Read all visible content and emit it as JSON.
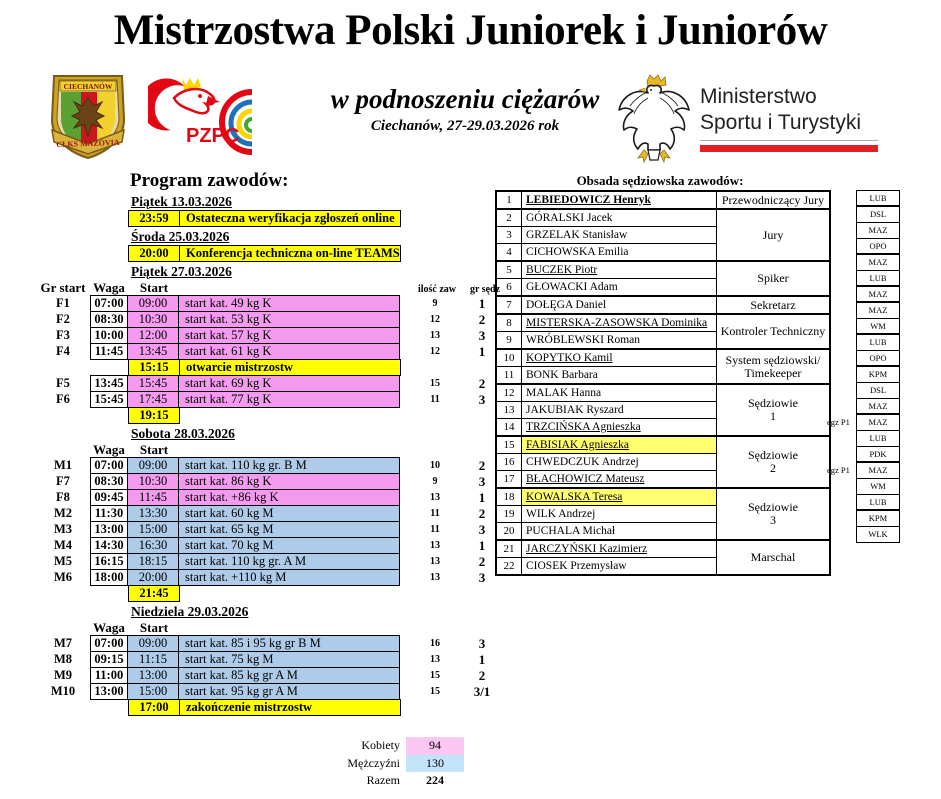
{
  "header": {
    "title": "Mistrzostwa Polski Juniorek i Juniorów",
    "subtitle": "w podnoszeniu ciężarów",
    "location": "Ciechanów, 27-29.03.2026 rok",
    "ministry": {
      "line1": "Ministerstwo",
      "line2": "Sportu i Turystyki"
    }
  },
  "logos": {
    "club_top": "CIECHANÓW",
    "club_bottom": "CŁKS MAZOVIA",
    "pzpc_label": "PZPC"
  },
  "colors": {
    "pink": "#F49BEF",
    "blue": "#AECBE9",
    "yellow": "#FFFF00",
    "hl_yellow": "#FFFF70",
    "sum_pink": "#FAC7F2",
    "sum_blue": "#C2E3F8",
    "red": "#E31E24"
  },
  "schedule": {
    "heading": "Program zawodów:",
    "col_headers": {
      "gr": "Gr start",
      "waga": "Waga",
      "start": "Start",
      "ilosc": "ilość zaw",
      "sedz": "gr sędz"
    },
    "pre_events": [
      {
        "date": "Piątek 13.03.2026",
        "time": "23:59",
        "desc": "Ostateczna weryfikacja zgłoszeń online"
      },
      {
        "date": "Środa 25.03.2026",
        "time": "20:00",
        "desc": "Konferencja techniczna on-line TEAMS"
      }
    ],
    "days": [
      {
        "date": "Piątek 27.03.2026",
        "show_gr": true,
        "show_counts": true,
        "rows": [
          {
            "gr": "F1",
            "waga": "07:00",
            "start": "09:00",
            "desc": "start kat. 49 kg K",
            "ilosc": "9",
            "sedz": "1",
            "color": "pink"
          },
          {
            "gr": "F2",
            "waga": "08:30",
            "start": "10:30",
            "desc": "start kat. 53 kg K",
            "ilosc": "12",
            "sedz": "2",
            "color": "pink"
          },
          {
            "gr": "F3",
            "waga": "10:00",
            "start": "12:00",
            "desc": "start kat. 57 kg K",
            "ilosc": "13",
            "sedz": "3",
            "color": "pink"
          },
          {
            "gr": "F4",
            "waga": "11:45",
            "start": "13:45",
            "desc": "start kat. 61 kg K",
            "ilosc": "12",
            "sedz": "1",
            "color": "pink"
          },
          {
            "special": true,
            "time": "15:15",
            "desc": "otwarcie mistrzostw"
          },
          {
            "gr": "F5",
            "waga": "13:45",
            "start": "15:45",
            "desc": "start kat. 69 kg K",
            "ilosc": "15",
            "sedz": "2",
            "color": "pink"
          },
          {
            "gr": "F6",
            "waga": "15:45",
            "start": "17:45",
            "desc": "start kat. 77 kg K",
            "ilosc": "11",
            "sedz": "3",
            "color": "pink"
          },
          {
            "special": true,
            "time": "19:15",
            "desc": ""
          }
        ]
      },
      {
        "date": "Sobota 28.03.2026",
        "show_gr": false,
        "show_counts": false,
        "rows": [
          {
            "gr": "M1",
            "waga": "07:00",
            "start": "09:00",
            "desc": "start kat. 110 kg gr. B M",
            "ilosc": "10",
            "sedz": "2",
            "color": "blue"
          },
          {
            "gr": "F7",
            "waga": "08:30",
            "start": "10:30",
            "desc": "start kat. 86 kg K",
            "ilosc": "9",
            "sedz": "3",
            "color": "pink"
          },
          {
            "gr": "F8",
            "waga": "09:45",
            "start": "11:45",
            "desc": "start kat. +86 kg K",
            "ilosc": "13",
            "sedz": "1",
            "color": "pink"
          },
          {
            "gr": "M2",
            "waga": "11:30",
            "start": "13:30",
            "desc": "start kat. 60 kg M",
            "ilosc": "11",
            "sedz": "2",
            "color": "blue"
          },
          {
            "gr": "M3",
            "waga": "13:00",
            "start": "15:00",
            "desc": "start kat. 65 kg M",
            "ilosc": "11",
            "sedz": "3",
            "color": "blue"
          },
          {
            "gr": "M4",
            "waga": "14:30",
            "start": "16:30",
            "desc": "start kat. 70 kg M",
            "ilosc": "13",
            "sedz": "1",
            "color": "blue"
          },
          {
            "gr": "M5",
            "waga": "16:15",
            "start": "18:15",
            "desc": "start kat. 110 kg gr. A M",
            "ilosc": "13",
            "sedz": "2",
            "color": "blue"
          },
          {
            "gr": "M6",
            "waga": "18:00",
            "start": "20:00",
            "desc": "start kat. +110 kg M",
            "ilosc": "13",
            "sedz": "3",
            "color": "blue"
          },
          {
            "special": true,
            "time": "21:45",
            "desc": ""
          }
        ]
      },
      {
        "date": "Niedziela 29.03.2026",
        "show_gr": false,
        "show_counts": false,
        "rows": [
          {
            "gr": "M7",
            "waga": "07:00",
            "start": "09:00",
            "desc": "start kat. 85 i 95 kg gr B M",
            "ilosc": "16",
            "sedz": "3",
            "color": "blue"
          },
          {
            "gr": "M8",
            "waga": "09:15",
            "start": "11:15",
            "desc": "start kat. 75 kg M",
            "ilosc": "13",
            "sedz": "1",
            "color": "blue"
          },
          {
            "gr": "M9",
            "waga": "11:00",
            "start": "13:00",
            "desc": "start kat. 85 kg gr A M",
            "ilosc": "15",
            "sedz": "2",
            "color": "blue"
          },
          {
            "gr": "M10",
            "waga": "13:00",
            "start": "15:00",
            "desc": "start kat. 95 kg gr A M",
            "ilosc": "15",
            "sedz": "3/1",
            "color": "blue"
          },
          {
            "special": true,
            "time": "17:00",
            "desc": "zakończenie mistrzostw"
          }
        ]
      }
    ]
  },
  "officials": {
    "heading": "Obsada sędziowska zawodów:",
    "rows": [
      {
        "no": "1",
        "name": "LEBIEDOWICZ Henryk",
        "bold": true,
        "underline": true,
        "hl": false,
        "code": "LUB"
      },
      {
        "no": "2",
        "name": "GÓRALSKI Jacek",
        "bold": false,
        "underline": false,
        "hl": false,
        "code": "DSL"
      },
      {
        "no": "3",
        "name": "GRZELAK Stanisław",
        "bold": false,
        "underline": false,
        "hl": false,
        "code": "MAZ"
      },
      {
        "no": "4",
        "name": "CICHOWSKA Emilia",
        "bold": false,
        "underline": false,
        "hl": false,
        "code": "OPO"
      },
      {
        "no": "5",
        "name": "BUCZEK  Piotr",
        "bold": false,
        "underline": true,
        "hl": false,
        "code": "MAZ"
      },
      {
        "no": "6",
        "name": "GŁOWACKI Adam",
        "bold": false,
        "underline": false,
        "hl": false,
        "code": "LUB"
      },
      {
        "no": "7",
        "name": "DOŁĘGA Daniel",
        "bold": false,
        "underline": false,
        "hl": false,
        "code": "MAZ"
      },
      {
        "no": "8",
        "name": "MISTERSKA-ZASOWSKA Dominika",
        "bold": false,
        "underline": true,
        "hl": false,
        "code": "MAZ"
      },
      {
        "no": "9",
        "name": "WRÓBLEWSKI Roman",
        "bold": false,
        "underline": false,
        "hl": false,
        "code": "WM"
      },
      {
        "no": "10",
        "name": "KOPYTKO Kamil",
        "bold": false,
        "underline": true,
        "hl": false,
        "code": "LUB"
      },
      {
        "no": "11",
        "name": "BONK Barbara",
        "bold": false,
        "underline": false,
        "hl": false,
        "code": "OPO"
      },
      {
        "no": "12",
        "name": "MALAK Hanna",
        "bold": false,
        "underline": false,
        "hl": false,
        "code": "KPM"
      },
      {
        "no": "13",
        "name": "JAKUBIAK Ryszard",
        "bold": false,
        "underline": false,
        "hl": false,
        "code": "DSL"
      },
      {
        "no": "14",
        "name": "TRZCIŃSKA  Agnieszka",
        "bold": false,
        "underline": true,
        "hl": false,
        "code": "MAZ"
      },
      {
        "no": "15",
        "name": "FABISIAK  Agnieszka",
        "bold": false,
        "underline": true,
        "hl": true,
        "code": "MAZ"
      },
      {
        "no": "16",
        "name": "CHWEDCZUK Andrzej",
        "bold": false,
        "underline": false,
        "hl": false,
        "code": "LUB"
      },
      {
        "no": "17",
        "name": "BŁACHOWICZ Mateusz",
        "bold": false,
        "underline": true,
        "hl": false,
        "code": "PDK"
      },
      {
        "no": "18",
        "name": "KOWALSKA Teresa",
        "bold": false,
        "underline": true,
        "hl": true,
        "code": "MAZ"
      },
      {
        "no": "19",
        "name": "WILK Andrzej",
        "bold": false,
        "underline": false,
        "hl": false,
        "code": "WM"
      },
      {
        "no": "20",
        "name": "PUCHALA Michał",
        "bold": false,
        "underline": false,
        "hl": false,
        "code": "LUB"
      },
      {
        "no": "21",
        "name": "JARCZYŃSKI Kazimierz",
        "bold": false,
        "underline": true,
        "hl": false,
        "code": "KPM"
      },
      {
        "no": "22",
        "name": "CIOSEK Przemysław",
        "bold": false,
        "underline": false,
        "hl": false,
        "code": "WLK"
      }
    ],
    "roles": [
      {
        "lines": [
          "Przewodniczący Jury"
        ],
        "from": 1,
        "to": 1
      },
      {
        "lines": [
          "Jury"
        ],
        "from": 2,
        "to": 4
      },
      {
        "lines": [
          "Spiker"
        ],
        "from": 5,
        "to": 6
      },
      {
        "lines": [
          "Sekretarz"
        ],
        "from": 7,
        "to": 7
      },
      {
        "lines": [
          "Kontroler Techniczny"
        ],
        "from": 8,
        "to": 9
      },
      {
        "lines": [
          "System sędziowski/",
          "Timekeeper"
        ],
        "from": 10,
        "to": 11
      },
      {
        "lines": [
          "Sędziowie",
          "1"
        ],
        "from": 12,
        "to": 14
      },
      {
        "lines": [
          "Sędziowie",
          "2"
        ],
        "from": 15,
        "to": 17
      },
      {
        "lines": [
          "Sędziowie",
          "3"
        ],
        "from": 18,
        "to": 20
      },
      {
        "lines": [
          "Marschal"
        ],
        "from": 21,
        "to": 22
      }
    ],
    "annotations": [
      {
        "row": 15,
        "text": "egz P1"
      },
      {
        "row": 18,
        "text": "egz P1"
      }
    ]
  },
  "summary": [
    {
      "label": "Kobiety",
      "value": "94",
      "color": "pink",
      "bold": false
    },
    {
      "label": "Mężczyźni",
      "value": "130",
      "color": "blue",
      "bold": false
    },
    {
      "label": "Razem",
      "value": "224",
      "color": "none",
      "bold": true
    }
  ]
}
